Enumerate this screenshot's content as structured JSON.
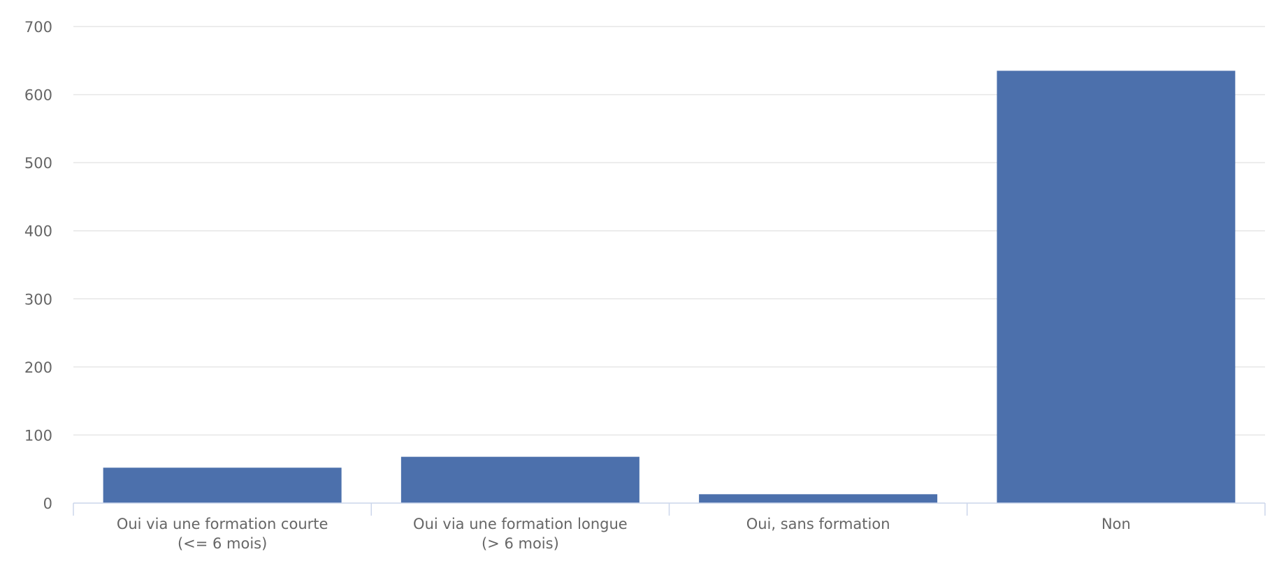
{
  "chart_data": {
    "type": "bar",
    "categories": [
      [
        "Oui via une formation courte",
        "(<= 6 mois)"
      ],
      [
        "Oui via une formation longue",
        "(> 6 mois)"
      ],
      [
        "Oui, sans formation"
      ],
      [
        "Non"
      ]
    ],
    "values": [
      52,
      68,
      13,
      635
    ],
    "ylim": [
      0,
      700
    ],
    "yticks": [
      0,
      100,
      200,
      300,
      400,
      500,
      600,
      700
    ],
    "grid": true,
    "legend": "none",
    "colors": {
      "bar": "#4c70ac"
    }
  }
}
